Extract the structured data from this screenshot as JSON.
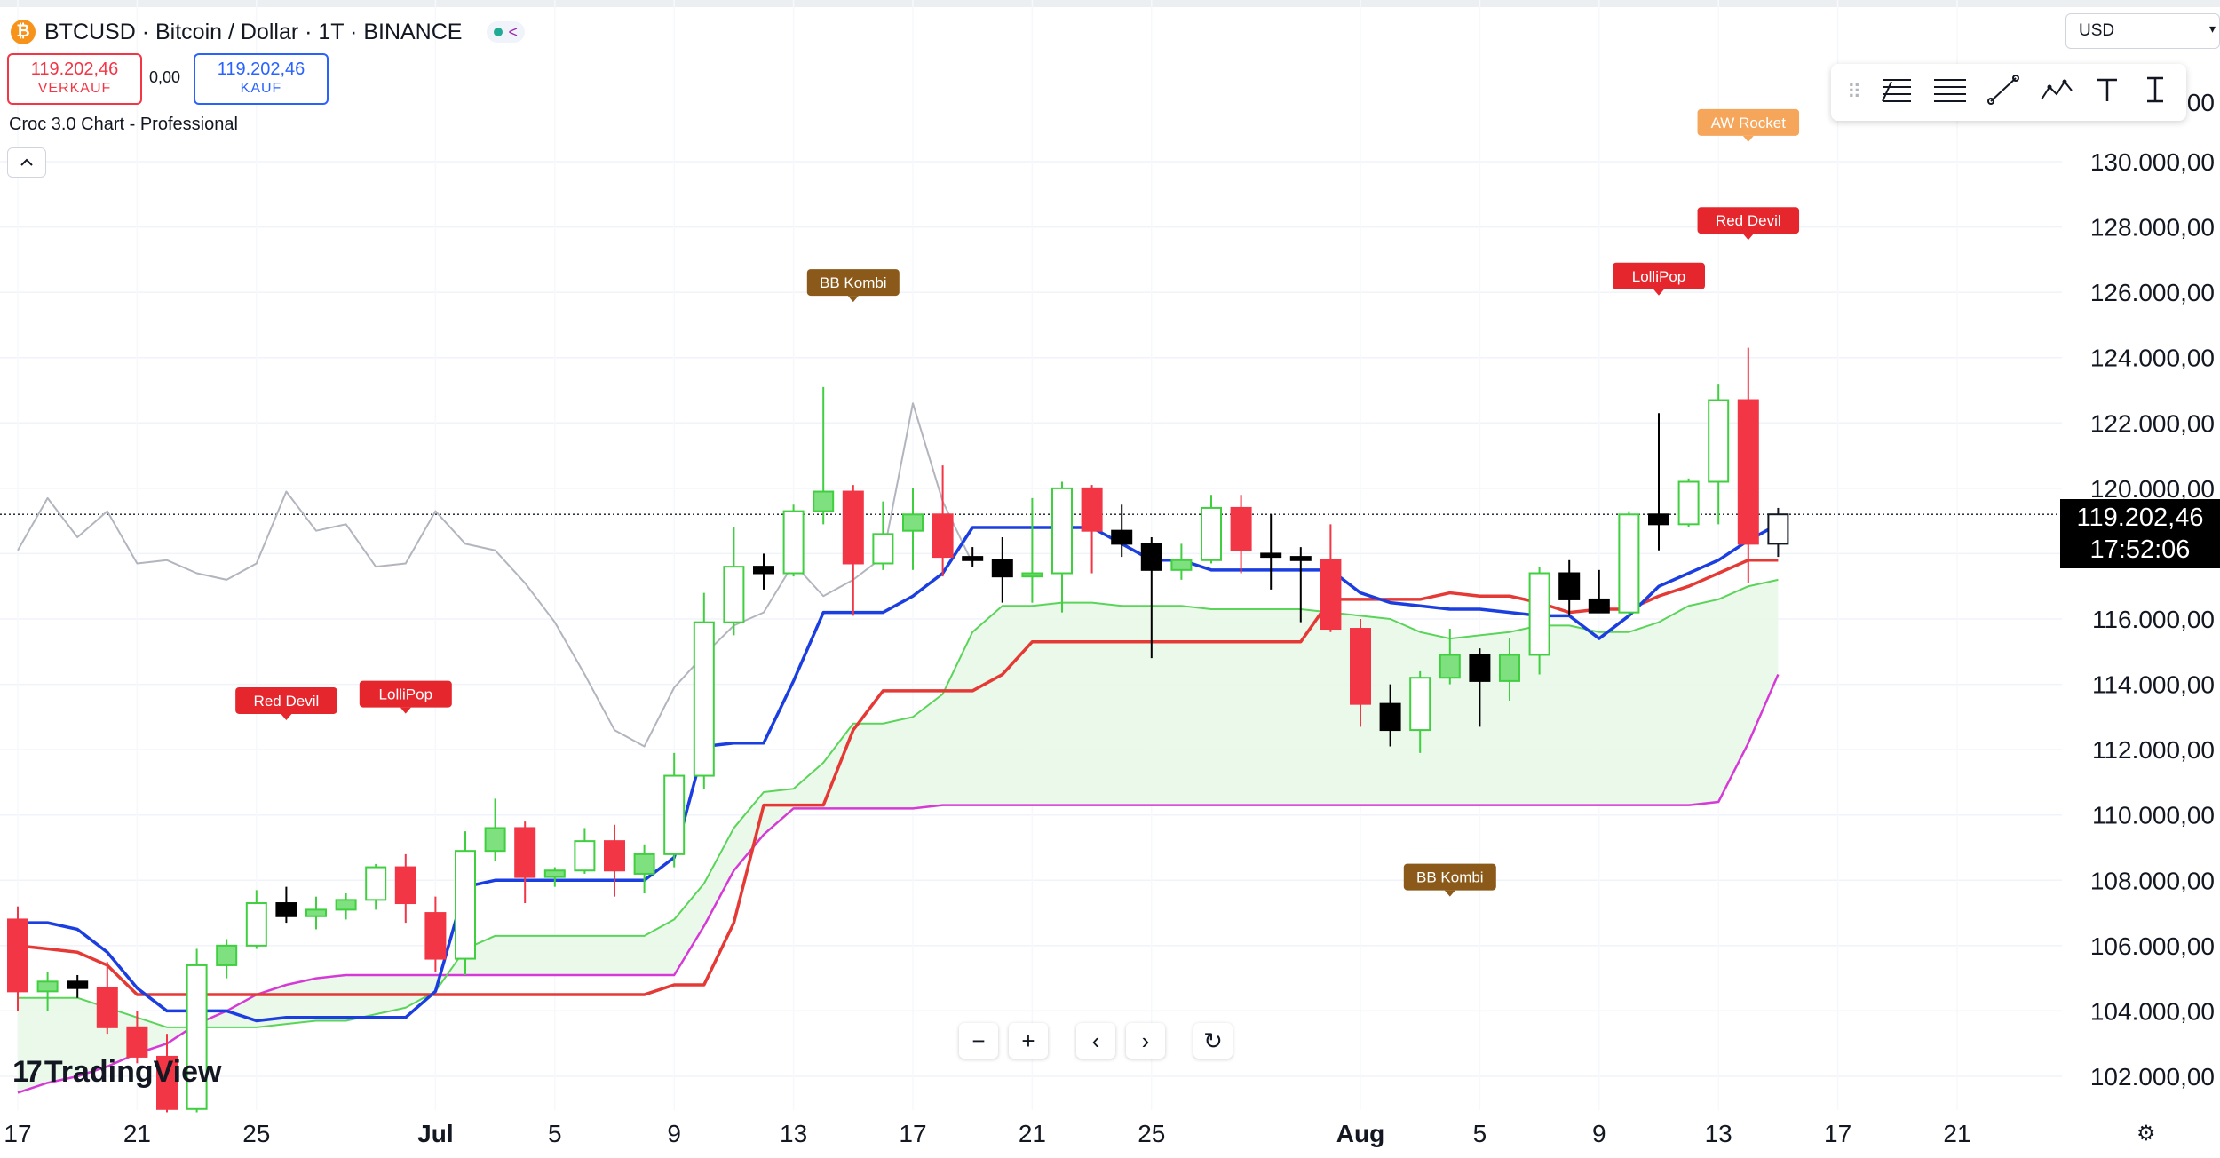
{
  "header": {
    "coin_symbol": "₿",
    "title": "BTCUSD · Bitcoin / Dollar · 1T · BINANCE",
    "share_icon": "share-icon"
  },
  "trade": {
    "sell_price": "119.202,46",
    "sell_label": "VERKAUF",
    "spread": "0,00",
    "buy_price": "119.202,46",
    "buy_label": "KAUF"
  },
  "indicator": {
    "name": "Croc 3.0 Chart - Professional",
    "collapse_icon": "chevron-up-icon"
  },
  "currency": {
    "value": "USD"
  },
  "drawing_tools": [
    "grip-icon",
    "trend-fib-icon",
    "horizontal-lines-icon",
    "line-icon",
    "pattern-icon",
    "text-icon",
    "cursor-text-icon"
  ],
  "zoom": {
    "minus": "−",
    "plus": "+",
    "prev": "‹",
    "next": "›",
    "reset": "↻"
  },
  "logo": {
    "text": "TradingView"
  },
  "current_price": {
    "price": "119.202,46",
    "countdown": "17:52:06"
  },
  "colors": {
    "up": "#00c853",
    "down": "#f23645",
    "tenkan": "#1a3ee0",
    "kijun": "#e53935",
    "spanb": "#d63ad6",
    "chikou": "#b2b5be",
    "cloud": "#e8f8e8"
  },
  "chart_data": {
    "type": "candlestick",
    "symbol": "BTCUSD",
    "y_axis": {
      "min": 102000,
      "max": 130000,
      "ticks": [
        102000,
        104000,
        106000,
        108000,
        110000,
        112000,
        114000,
        116000,
        118000,
        120000,
        122000,
        124000,
        126000,
        128000,
        130000
      ],
      "tick_labels": [
        "102.000,00",
        "104.000,00",
        "106.000,00",
        "108.000,00",
        "110.000,00",
        "112.000,00",
        "114.000,00",
        "116.000,00",
        "118.000,00",
        "120.000,00",
        "122.000,00",
        "124.000,00",
        "126.000,00",
        "128.000,00",
        "130.000,00"
      ],
      "clipped_top_label": "00"
    },
    "x_axis": {
      "tick_labels": [
        "17",
        "21",
        "25",
        "Jul",
        "5",
        "9",
        "13",
        "17",
        "21",
        "25",
        "Aug",
        "5",
        "9",
        "13",
        "17",
        "21"
      ],
      "tick_dates": [
        "2025-06-17",
        "2025-06-21",
        "2025-06-25",
        "2025-07-01",
        "2025-07-05",
        "2025-07-09",
        "2025-07-13",
        "2025-07-17",
        "2025-07-21",
        "2025-07-25",
        "2025-08-01",
        "2025-08-05",
        "2025-08-09",
        "2025-08-13",
        "2025-08-17",
        "2025-08-21"
      ]
    },
    "candles": [
      {
        "date": "2025-06-17",
        "o": 106800,
        "h": 107200,
        "l": 104000,
        "c": 104600
      },
      {
        "date": "2025-06-18",
        "o": 104600,
        "h": 105200,
        "l": 104000,
        "c": 104900
      },
      {
        "date": "2025-06-19",
        "o": 104900,
        "h": 105100,
        "l": 104400,
        "c": 104700
      },
      {
        "date": "2025-06-20",
        "o": 104700,
        "h": 105500,
        "l": 103300,
        "c": 103500
      },
      {
        "date": "2025-06-21",
        "o": 103500,
        "h": 104000,
        "l": 102400,
        "c": 102600
      },
      {
        "date": "2025-06-22",
        "o": 102600,
        "h": 103300,
        "l": 100900,
        "c": 101000
      },
      {
        "date": "2025-06-23",
        "o": 101000,
        "h": 105900,
        "l": 100900,
        "c": 105400
      },
      {
        "date": "2025-06-24",
        "o": 105400,
        "h": 106200,
        "l": 105000,
        "c": 106000
      },
      {
        "date": "2025-06-25",
        "o": 106000,
        "h": 107700,
        "l": 105900,
        "c": 107300
      },
      {
        "date": "2025-06-26",
        "o": 107300,
        "h": 107800,
        "l": 106700,
        "c": 106900
      },
      {
        "date": "2025-06-27",
        "o": 106900,
        "h": 107500,
        "l": 106500,
        "c": 107100
      },
      {
        "date": "2025-06-28",
        "o": 107100,
        "h": 107600,
        "l": 106800,
        "c": 107400
      },
      {
        "date": "2025-06-29",
        "o": 107400,
        "h": 108500,
        "l": 107100,
        "c": 108400
      },
      {
        "date": "2025-06-30",
        "o": 108400,
        "h": 108800,
        "l": 106700,
        "c": 107300
      },
      {
        "date": "2025-07-01",
        "o": 107000,
        "h": 107500,
        "l": 105200,
        "c": 105600
      },
      {
        "date": "2025-07-02",
        "o": 105600,
        "h": 109500,
        "l": 105100,
        "c": 108900
      },
      {
        "date": "2025-07-03",
        "o": 108900,
        "h": 110500,
        "l": 108600,
        "c": 109600
      },
      {
        "date": "2025-07-04",
        "o": 109600,
        "h": 109800,
        "l": 107300,
        "c": 108100
      },
      {
        "date": "2025-07-05",
        "o": 108100,
        "h": 108400,
        "l": 107800,
        "c": 108300
      },
      {
        "date": "2025-07-06",
        "o": 108300,
        "h": 109600,
        "l": 108200,
        "c": 109200
      },
      {
        "date": "2025-07-07",
        "o": 109200,
        "h": 109700,
        "l": 107500,
        "c": 108300
      },
      {
        "date": "2025-07-08",
        "o": 108200,
        "h": 109100,
        "l": 107600,
        "c": 108800
      },
      {
        "date": "2025-07-09",
        "o": 108800,
        "h": 111900,
        "l": 108400,
        "c": 111200
      },
      {
        "date": "2025-07-10",
        "o": 111200,
        "h": 116800,
        "l": 110800,
        "c": 115900
      },
      {
        "date": "2025-07-11",
        "o": 115900,
        "h": 118800,
        "l": 115500,
        "c": 117600
      },
      {
        "date": "2025-07-12",
        "o": 117600,
        "h": 118000,
        "l": 116900,
        "c": 117400
      },
      {
        "date": "2025-07-13",
        "o": 117400,
        "h": 119500,
        "l": 117300,
        "c": 119300
      },
      {
        "date": "2025-07-14",
        "o": 119300,
        "h": 123100,
        "l": 118900,
        "c": 119900
      },
      {
        "date": "2025-07-15",
        "o": 119900,
        "h": 120100,
        "l": 116100,
        "c": 117700
      },
      {
        "date": "2025-07-16",
        "o": 117700,
        "h": 119600,
        "l": 117500,
        "c": 118600
      },
      {
        "date": "2025-07-17",
        "o": 118700,
        "h": 120000,
        "l": 117500,
        "c": 119200
      },
      {
        "date": "2025-07-18",
        "o": 119200,
        "h": 120700,
        "l": 117300,
        "c": 117900
      },
      {
        "date": "2025-07-19",
        "o": 117900,
        "h": 118200,
        "l": 117600,
        "c": 117800
      },
      {
        "date": "2025-07-20",
        "o": 117800,
        "h": 118500,
        "l": 116500,
        "c": 117300
      },
      {
        "date": "2025-07-21",
        "o": 117300,
        "h": 119700,
        "l": 116500,
        "c": 117400
      },
      {
        "date": "2025-07-22",
        "o": 117400,
        "h": 120200,
        "l": 116200,
        "c": 120000
      },
      {
        "date": "2025-07-23",
        "o": 120000,
        "h": 120100,
        "l": 117400,
        "c": 118700
      },
      {
        "date": "2025-07-24",
        "o": 118700,
        "h": 119500,
        "l": 117900,
        "c": 118300
      },
      {
        "date": "2025-07-25",
        "o": 118300,
        "h": 118500,
        "l": 114800,
        "c": 117500
      },
      {
        "date": "2025-07-26",
        "o": 117500,
        "h": 118300,
        "l": 117200,
        "c": 117800
      },
      {
        "date": "2025-07-27",
        "o": 117800,
        "h": 119800,
        "l": 117700,
        "c": 119400
      },
      {
        "date": "2025-07-28",
        "o": 119400,
        "h": 119800,
        "l": 117400,
        "c": 118100
      },
      {
        "date": "2025-07-29",
        "o": 118000,
        "h": 119200,
        "l": 116900,
        "c": 117900
      },
      {
        "date": "2025-07-30",
        "o": 117900,
        "h": 118200,
        "l": 115900,
        "c": 117800
      },
      {
        "date": "2025-07-31",
        "o": 117800,
        "h": 118900,
        "l": 115600,
        "c": 115700
      },
      {
        "date": "2025-08-01",
        "o": 115700,
        "h": 116000,
        "l": 112700,
        "c": 113400
      },
      {
        "date": "2025-08-02",
        "o": 113400,
        "h": 114000,
        "l": 112100,
        "c": 112600
      },
      {
        "date": "2025-08-03",
        "o": 112600,
        "h": 114400,
        "l": 111900,
        "c": 114200
      },
      {
        "date": "2025-08-04",
        "o": 114200,
        "h": 115700,
        "l": 114000,
        "c": 114900
      },
      {
        "date": "2025-08-05",
        "o": 114900,
        "h": 115100,
        "l": 112700,
        "c": 114100
      },
      {
        "date": "2025-08-06",
        "o": 114100,
        "h": 115400,
        "l": 113500,
        "c": 114900
      },
      {
        "date": "2025-08-07",
        "o": 114900,
        "h": 117600,
        "l": 114300,
        "c": 117400
      },
      {
        "date": "2025-08-08",
        "o": 117400,
        "h": 117800,
        "l": 116100,
        "c": 116600
      },
      {
        "date": "2025-08-09",
        "o": 116600,
        "h": 117500,
        "l": 116200,
        "c": 116200
      },
      {
        "date": "2025-08-10",
        "o": 116200,
        "h": 119300,
        "l": 116100,
        "c": 119200
      },
      {
        "date": "2025-08-11",
        "o": 119200,
        "h": 122300,
        "l": 118100,
        "c": 118900
      },
      {
        "date": "2025-08-12",
        "o": 118900,
        "h": 120300,
        "l": 118800,
        "c": 120200
      },
      {
        "date": "2025-08-13",
        "o": 120200,
        "h": 123200,
        "l": 118900,
        "c": 122700
      },
      {
        "date": "2025-08-14",
        "o": 122700,
        "h": 124300,
        "l": 117100,
        "c": 118300
      },
      {
        "date": "2025-08-15",
        "o": 118300,
        "h": 119400,
        "l": 117900,
        "c": 119202
      }
    ],
    "lines": {
      "tenkan": [
        106700,
        106700,
        106500,
        105800,
        104700,
        104000,
        104000,
        104000,
        103700,
        103800,
        103800,
        103800,
        103800,
        103800,
        104600,
        107800,
        108000,
        108000,
        108000,
        108000,
        108000,
        108000,
        108700,
        112100,
        112200,
        112200,
        114100,
        116200,
        116200,
        116200,
        116700,
        117400,
        118800,
        118800,
        118800,
        118800,
        118800,
        118300,
        117800,
        117800,
        117500,
        117500,
        117500,
        117500,
        117500,
        116800,
        116500,
        116400,
        116300,
        116300,
        116200,
        116100,
        116100,
        115400,
        116100,
        117000,
        117400,
        117800,
        118400,
        118900
      ],
      "kijun": [
        106000,
        105900,
        105800,
        105400,
        104500,
        104500,
        104500,
        104500,
        104500,
        104500,
        104500,
        104500,
        104500,
        104500,
        104500,
        104500,
        104500,
        104500,
        104500,
        104500,
        104500,
        104500,
        104800,
        104800,
        106700,
        110300,
        110300,
        110300,
        112600,
        113800,
        113800,
        113800,
        113800,
        114300,
        115300,
        115300,
        115300,
        115300,
        115300,
        115300,
        115300,
        115300,
        115300,
        115300,
        116600,
        116600,
        116600,
        116600,
        116800,
        116700,
        116700,
        116500,
        116200,
        116300,
        116300,
        116700,
        117000,
        117400,
        117800,
        117800
      ],
      "span_b": [
        101500,
        101800,
        102000,
        102300,
        102700,
        103000,
        103600,
        104000,
        104500,
        104800,
        105000,
        105100,
        105100,
        105100,
        105100,
        105100,
        105100,
        105100,
        105100,
        105100,
        105100,
        105100,
        105100,
        106600,
        108300,
        109400,
        110200,
        110200,
        110200,
        110200,
        110200,
        110300,
        110300,
        110300,
        110300,
        110300,
        110300,
        110300,
        110300,
        110300,
        110300,
        110300,
        110300,
        110300,
        110300,
        110300,
        110300,
        110300,
        110300,
        110300,
        110300,
        110300,
        110300,
        110300,
        110300,
        110300,
        110300,
        110400,
        112200,
        114300
      ],
      "span_a": [
        104400,
        104400,
        104400,
        104100,
        103800,
        103500,
        103500,
        103500,
        103500,
        103600,
        103700,
        103700,
        103900,
        104100,
        104600,
        105900,
        106300,
        106300,
        106300,
        106300,
        106300,
        106300,
        106800,
        107900,
        109600,
        110700,
        110800,
        111600,
        112800,
        112800,
        113000,
        113700,
        115600,
        116400,
        116400,
        116500,
        116500,
        116400,
        116400,
        116400,
        116300,
        116300,
        116300,
        116300,
        116200,
        116100,
        116000,
        115600,
        115400,
        115500,
        115600,
        115800,
        115800,
        115600,
        115600,
        115900,
        116400,
        116600,
        117000,
        117200
      ],
      "chikou": [
        118100,
        119700,
        118500,
        119300,
        117700,
        117800,
        117400,
        117200,
        117700,
        119900,
        118700,
        118900,
        117600,
        117700,
        119300,
        118300,
        118100,
        117100,
        115900,
        114300,
        112600,
        112100,
        113900,
        114900,
        115800,
        116200,
        117700,
        116700,
        117200,
        117900,
        122600,
        119600,
        117700
      ]
    },
    "signals": [
      {
        "label": "Red Devil",
        "date": "2025-06-26",
        "at": 113500
      },
      {
        "label": "LolliPop",
        "date": "2025-06-30",
        "at": 113700
      },
      {
        "label": "BB Kombi",
        "date": "2025-07-15",
        "at": 126300
      },
      {
        "label": "BB Kombi",
        "date": "2025-08-04",
        "at": 108100
      },
      {
        "label": "LolliPop",
        "date": "2025-08-11",
        "at": 126500
      },
      {
        "label": "Red Devil",
        "date": "2025-08-14",
        "at": 128200
      },
      {
        "label": "AW Rocket",
        "date": "2025-08-14",
        "at": 131200
      }
    ],
    "legend": "none",
    "grid": true
  }
}
